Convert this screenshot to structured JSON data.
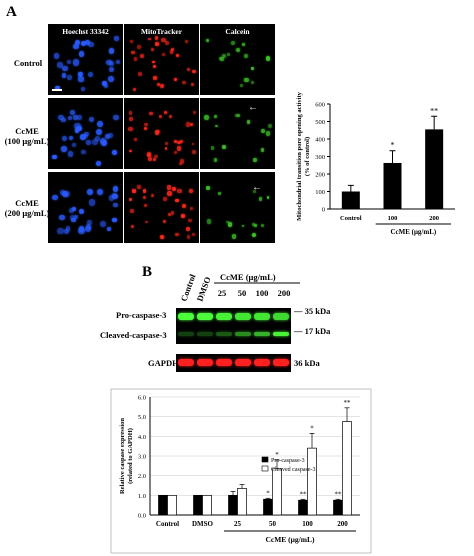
{
  "panel_a": {
    "letter": "A",
    "column_titles": [
      "Hoechst 33342",
      "MitoTracker",
      "Calcein"
    ],
    "row_labels": [
      [
        "Control"
      ],
      [
        "CcME",
        "(100 μg/mL)"
      ],
      [
        "CcME",
        "(200 μg/mL)"
      ]
    ],
    "stain_colors": [
      "#2a5cff",
      "#ff2a1e",
      "#3fbf2a"
    ]
  },
  "panel_b": {
    "letter": "B",
    "lane_labels_rotated": [
      "Control",
      "DMSO"
    ],
    "ccme_header": "CcME (μg/mL)",
    "doses": [
      "25",
      "50",
      "100",
      "200"
    ],
    "blot_labels": [
      "Pro-caspase-3",
      "Cleaved-caspase-3",
      "GAPDH"
    ],
    "kda_labels": [
      "35 kDa",
      "17 kDa",
      "36 kDa"
    ]
  },
  "chart_data": [
    {
      "type": "bar",
      "ylabel": "Mitochondrial transition pore opening activity (% of control)",
      "categories": [
        "Control",
        "100",
        "200"
      ],
      "group_label": "CcME (μg/mL)",
      "values": [
        100,
        263,
        455
      ],
      "errors": [
        35,
        70,
        75
      ],
      "significance": [
        "",
        "*",
        "**"
      ],
      "ylim": [
        0,
        600
      ],
      "yticks": [
        0,
        100,
        200,
        300,
        400,
        500,
        600
      ]
    },
    {
      "type": "bar",
      "ylabel": "Relative caspase expression (related to GAPDH)",
      "categories": [
        "Control",
        "DMSO",
        "25",
        "50",
        "100",
        "200"
      ],
      "group_label": "CcME (μg/mL)",
      "series": [
        {
          "name": "Pro-caspase-3",
          "values": [
            1.0,
            1.0,
            1.0,
            0.8,
            0.75,
            0.75
          ],
          "errors": [
            0.0,
            0.0,
            0.2,
            0.05,
            0.05,
            0.05
          ],
          "significance": [
            "",
            "",
            "",
            "*",
            "**",
            "**"
          ]
        },
        {
          "name": "Cleaved caspase-3",
          "values": [
            1.0,
            1.0,
            1.35,
            2.35,
            3.4,
            4.75
          ],
          "errors": [
            0.0,
            0.0,
            0.2,
            0.45,
            0.75,
            0.7
          ],
          "significance": [
            "",
            "",
            "",
            "*",
            "*",
            "**"
          ]
        }
      ],
      "ylim": [
        0,
        6.0
      ],
      "yticks": [
        "0.0",
        "1.0",
        "2.0",
        "3.0",
        "4.0",
        "5.0",
        "6.0"
      ]
    }
  ]
}
